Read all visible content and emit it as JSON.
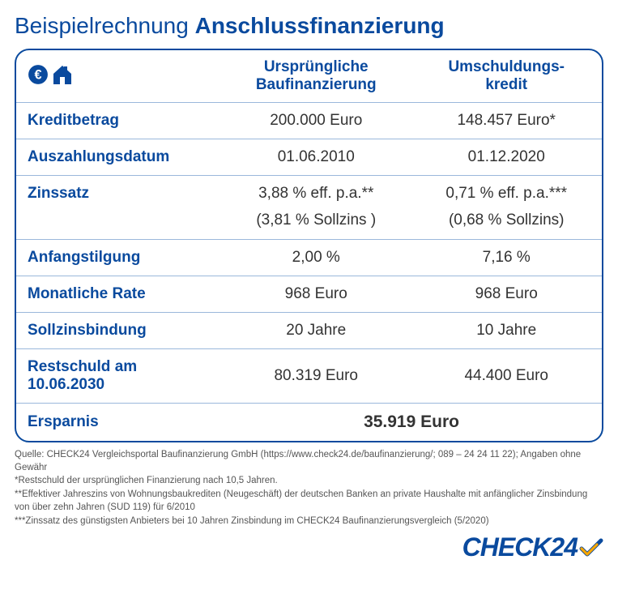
{
  "colors": {
    "brand": "#0a4a9e",
    "border": "#0a4a9e",
    "rowDivider": "#9bb8db",
    "text": "#333333",
    "footnote": "#555555",
    "background": "#ffffff"
  },
  "title": {
    "light": "Beispielrechnung ",
    "bold": "Anschlussfinanzierung"
  },
  "table": {
    "headers": {
      "col1_icon": "euro-house-icon",
      "col2_line1": "Ursprüngliche",
      "col2_line2": "Baufinanzierung",
      "col3_line1": "Umschuldungs-",
      "col3_line2": "kredit"
    },
    "rows": [
      {
        "label": "Kreditbetrag",
        "col2": "200.000 Euro",
        "col3": "148.457 Euro*"
      },
      {
        "label": "Auszahlungsdatum",
        "col2": "01.06.2010",
        "col3": "01.12.2020"
      },
      {
        "label": "Zinssatz",
        "col2": "3,88 % eff. p.a.**",
        "col3": "0,71 % eff. p.a.***",
        "sub": {
          "col2": "(3,81 % Sollzins )",
          "col3": "(0,68 % Sollzins)"
        }
      },
      {
        "label": "Anfangstilgung",
        "col2": "2,00 %",
        "col3": "7,16 %"
      },
      {
        "label": "Monatliche Rate",
        "col2": "968 Euro",
        "col3": "968 Euro"
      },
      {
        "label": "Sollzinsbindung",
        "col2": "20 Jahre",
        "col3": "10 Jahre"
      },
      {
        "label": "Restschuld am 10.06.2030",
        "col2": "80.319 Euro",
        "col3": "44.400 Euro"
      }
    ],
    "savings": {
      "label": "Ersparnis",
      "value": "35.919 Euro"
    }
  },
  "footnotes": [
    "Quelle: CHECK24 Vergleichsportal Baufinanzierung GmbH (https://www.check24.de/baufinanzierung/; 089 – 24 24 11 22); Angaben ohne Gewähr",
    "*Restschuld der ursprünglichen Finanzierung nach 10,5 Jahren.",
    "**Effektiver Jahreszins von Wohnungsbaukrediten (Neugeschäft) der deutschen Banken an private Haushalte mit anfänglicher Zinsbindung",
    " von über zehn Jahren (SUD 119) für 6/2010",
    "***Zinssatz des günstigsten Anbieters bei 10 Jahren Zinsbindung im CHECK24 Baufinanzierungsvergleich (5/2020)"
  ],
  "logo": {
    "text": "CHECK24"
  }
}
